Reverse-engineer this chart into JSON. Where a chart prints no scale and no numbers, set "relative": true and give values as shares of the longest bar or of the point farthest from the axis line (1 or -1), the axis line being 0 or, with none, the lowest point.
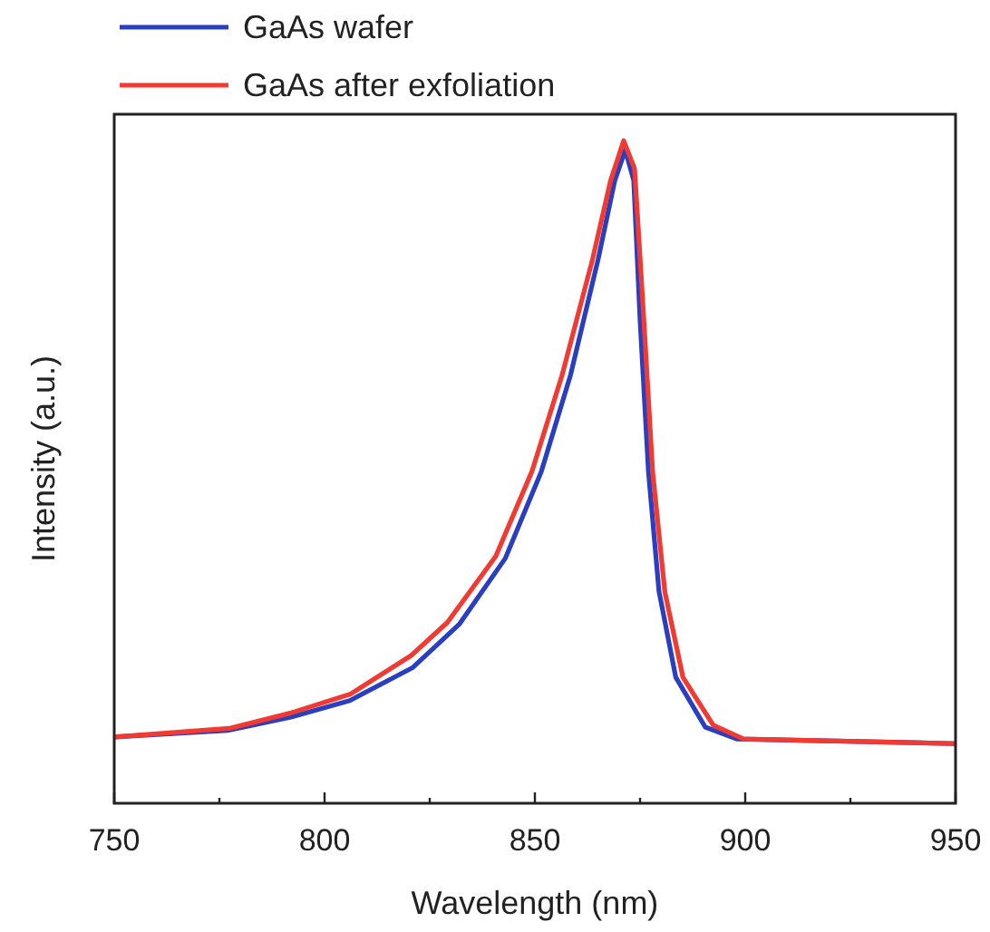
{
  "chart_data": {
    "type": "line",
    "xlabel": "Wavelength (nm)",
    "ylabel": "Intensity (a.u.)",
    "relative": true,
    "legend": "top left",
    "grid": false,
    "xlim": [
      750,
      950
    ],
    "xticks": [
      750,
      {
        "value": 775,
        "label": null
      },
      800,
      {
        "value": 825,
        "label": null
      },
      850,
      {
        "value": 875,
        "label": null
      },
      900,
      {
        "value": 925,
        "label": null
      },
      950
    ],
    "series": [
      {
        "name": "GaAs wafer",
        "color": "#2a3fc0",
        "x": [
          750,
          777,
          792,
          806,
          821,
          832,
          843,
          851.5,
          858.5,
          865,
          869,
          871.5,
          873.5,
          875,
          877,
          879.5,
          883.5,
          890.5,
          898,
          950
        ],
        "values": [
          0.1,
          0.11,
          0.13,
          0.155,
          0.205,
          0.27,
          0.37,
          0.5,
          0.647,
          0.82,
          0.94,
          0.986,
          0.94,
          0.73,
          0.5,
          0.32,
          0.19,
          0.115,
          0.097,
          0.09
        ]
      },
      {
        "name": "GaAs after exfoliation",
        "color": "#f03a32",
        "x": [
          750,
          777.4,
          791.8,
          806.2,
          820.6,
          829.2,
          840.7,
          849.3,
          856.5,
          863.7,
          868,
          871.1,
          873.7,
          875.9,
          878,
          880.9,
          885.2,
          892.4,
          899.6,
          950
        ],
        "values": [
          0.1,
          0.113,
          0.136,
          0.165,
          0.223,
          0.273,
          0.373,
          0.501,
          0.647,
          0.821,
          0.94,
          1,
          0.958,
          0.73,
          0.5,
          0.319,
          0.19,
          0.118,
          0.097,
          0.09
        ]
      }
    ]
  }
}
